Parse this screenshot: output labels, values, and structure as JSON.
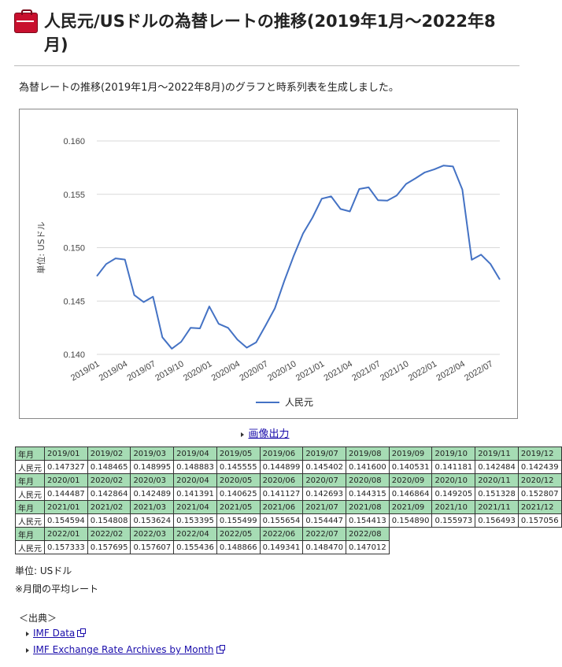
{
  "page": {
    "title": "人民元/USドルの為替レートの推移(2019年1月～2022年8月)",
    "lead": "為替レートの推移(2019年1月～2022年8月)のグラフと時系列表を生成しました。",
    "image_link": "画像出力",
    "unit_note": "単位: USドル",
    "avg_note": "※月間の平均レート",
    "source_heading": "＜出典＞",
    "sources": [
      "IMF Data",
      "IMF Exchange Rate Archives by Month"
    ],
    "table_header_label": "年月",
    "table_row_label": "人民元",
    "header_color": "#a6dcb4",
    "line_color": "#4472c4"
  },
  "chart_data": {
    "type": "line",
    "ylabel": "単位: USドル",
    "ylim": [
      0.14,
      0.16
    ],
    "yticks": [
      "0.160",
      "0.155",
      "0.150",
      "0.145",
      "0.140"
    ],
    "xtick_labels": [
      "2019/01",
      "2019/04",
      "2019/07",
      "2019/10",
      "2020/01",
      "2020/04",
      "2020/07",
      "2020/10",
      "2021/01",
      "2021/04",
      "2021/07",
      "2021/10",
      "2022/01",
      "2022/04",
      "2022/07"
    ],
    "categories": [
      "2019/01",
      "2019/02",
      "2019/03",
      "2019/04",
      "2019/05",
      "2019/06",
      "2019/07",
      "2019/08",
      "2019/09",
      "2019/10",
      "2019/11",
      "2019/12",
      "2020/01",
      "2020/02",
      "2020/03",
      "2020/04",
      "2020/05",
      "2020/06",
      "2020/07",
      "2020/08",
      "2020/09",
      "2020/10",
      "2020/11",
      "2020/12",
      "2021/01",
      "2021/02",
      "2021/03",
      "2021/04",
      "2021/05",
      "2021/06",
      "2021/07",
      "2021/08",
      "2021/09",
      "2021/10",
      "2021/11",
      "2021/12",
      "2022/01",
      "2022/02",
      "2022/03",
      "2022/04",
      "2022/05",
      "2022/06",
      "2022/07",
      "2022/08"
    ],
    "series": [
      {
        "name": "人民元",
        "values": [
          0.147327,
          0.148465,
          0.148995,
          0.148883,
          0.145555,
          0.144899,
          0.145402,
          0.1416,
          0.140531,
          0.141181,
          0.142484,
          0.142439,
          0.144487,
          0.142864,
          0.142489,
          0.141391,
          0.140625,
          0.141127,
          0.142693,
          0.144315,
          0.146864,
          0.149205,
          0.151328,
          0.152807,
          0.154594,
          0.154808,
          0.153624,
          0.153395,
          0.155499,
          0.155654,
          0.154447,
          0.154413,
          0.15489,
          0.155973,
          0.156493,
          0.157056,
          0.157333,
          0.157695,
          0.157607,
          0.155436,
          0.148866,
          0.149341,
          0.14847,
          0.147012
        ]
      }
    ],
    "legend": "bottom",
    "grid": true
  },
  "table": {
    "rows": [
      {
        "months": [
          "2019/01",
          "2019/02",
          "2019/03",
          "2019/04",
          "2019/05",
          "2019/06",
          "2019/07",
          "2019/08",
          "2019/09",
          "2019/10",
          "2019/11",
          "2019/12"
        ],
        "values": [
          "0.147327",
          "0.148465",
          "0.148995",
          "0.148883",
          "0.145555",
          "0.144899",
          "0.145402",
          "0.141600",
          "0.140531",
          "0.141181",
          "0.142484",
          "0.142439"
        ]
      },
      {
        "months": [
          "2020/01",
          "2020/02",
          "2020/03",
          "2020/04",
          "2020/05",
          "2020/06",
          "2020/07",
          "2020/08",
          "2020/09",
          "2020/10",
          "2020/11",
          "2020/12"
        ],
        "values": [
          "0.144487",
          "0.142864",
          "0.142489",
          "0.141391",
          "0.140625",
          "0.141127",
          "0.142693",
          "0.144315",
          "0.146864",
          "0.149205",
          "0.151328",
          "0.152807"
        ]
      },
      {
        "months": [
          "2021/01",
          "2021/02",
          "2021/03",
          "2021/04",
          "2021/05",
          "2021/06",
          "2021/07",
          "2021/08",
          "2021/09",
          "2021/10",
          "2021/11",
          "2021/12"
        ],
        "values": [
          "0.154594",
          "0.154808",
          "0.153624",
          "0.153395",
          "0.155499",
          "0.155654",
          "0.154447",
          "0.154413",
          "0.154890",
          "0.155973",
          "0.156493",
          "0.157056"
        ]
      },
      {
        "months": [
          "2022/01",
          "2022/02",
          "2022/03",
          "2022/04",
          "2022/05",
          "2022/06",
          "2022/07",
          "2022/08"
        ],
        "values": [
          "0.157333",
          "0.157695",
          "0.157607",
          "0.155436",
          "0.148866",
          "0.149341",
          "0.148470",
          "0.147012"
        ]
      }
    ]
  }
}
